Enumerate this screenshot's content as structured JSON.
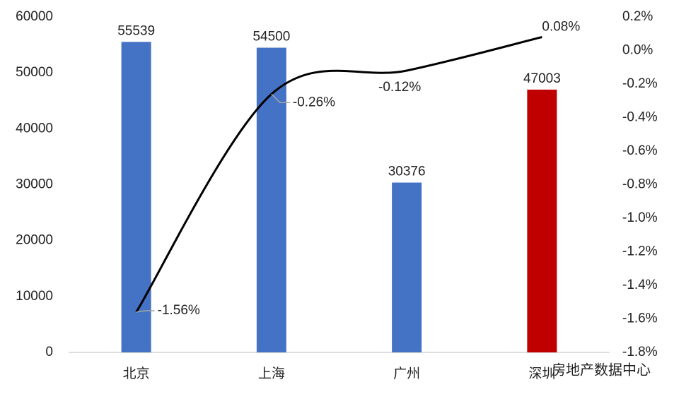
{
  "chart_data": {
    "type": "combo",
    "categories": [
      "北京",
      "上海",
      "广州",
      "深圳"
    ],
    "series": [
      {
        "type": "bar",
        "colors": [
          "#4472c4",
          "#4472c4",
          "#4472c4",
          "#c00000"
        ],
        "values": [
          55539,
          54500,
          30376,
          47003
        ]
      },
      {
        "type": "line",
        "axis": "y2",
        "color": "#000000",
        "values": [
          -1.56,
          -0.26,
          -0.12,
          0.08
        ],
        "value_labels": [
          "-1.56%",
          "-0.26%",
          "-0.12%",
          "0.08%"
        ]
      }
    ],
    "ylim": [
      0,
      60000
    ],
    "yticks": [
      0,
      10000,
      20000,
      30000,
      40000,
      50000,
      60000
    ],
    "y2lim": [
      -1.8,
      0.2
    ],
    "y2ticks": [
      {
        "value": -1.8,
        "label": "-1.8%"
      },
      {
        "value": -1.6,
        "label": "-1.6%"
      },
      {
        "value": -1.4,
        "label": "-1.4%"
      },
      {
        "value": -1.2,
        "label": "-1.2%"
      },
      {
        "value": -1.0,
        "label": "-1.0%"
      },
      {
        "value": -0.8,
        "label": "-0.8%"
      },
      {
        "value": -0.6,
        "label": "-0.6%"
      },
      {
        "value": -0.4,
        "label": "-0.4%"
      },
      {
        "value": -0.2,
        "label": "-0.2%"
      },
      {
        "value": 0.0,
        "label": "0.0%"
      },
      {
        "value": 0.2,
        "label": "0.2%"
      }
    ],
    "watermark": "房地产数据中心"
  }
}
